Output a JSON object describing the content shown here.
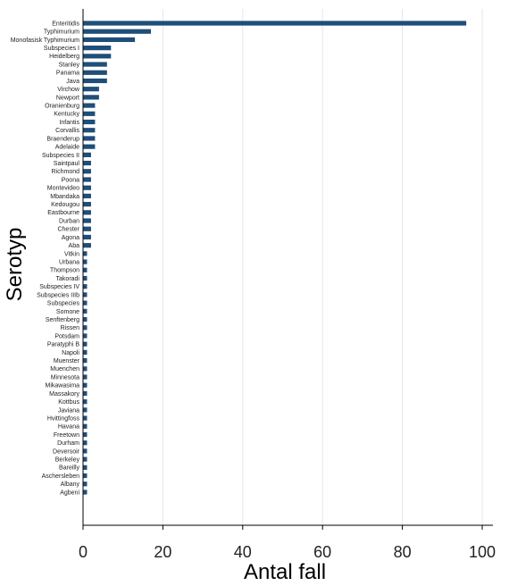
{
  "chart_data": {
    "type": "bar",
    "orientation": "horizontal",
    "categories": [
      "Enteritidis",
      "Typhimurium",
      "Monofasisk Typhimurium",
      "Subspecies I",
      "Heidelberg",
      "Stanley",
      "Panama",
      "Java",
      "Virchow",
      "Newport",
      "Oranienburg",
      "Kentucky",
      "Infantis",
      "Corvallis",
      "Braenderup",
      "Adelaide",
      "Subspecies II",
      "Saintpaul",
      "Richmond",
      "Poona",
      "Montevideo",
      "Mbandaka",
      "Kedougou",
      "Eastbourne",
      "Durban",
      "Chester",
      "Agona",
      "Aba",
      "Vitkin",
      "Urbana",
      "Thompson",
      "Takoradi",
      "Subspecies IV",
      "Subspecies IIIb",
      "Subspecies",
      "Somone",
      "Senftenberg",
      "Rissen",
      "Potsdam",
      "Paratyphi B",
      "Napoli",
      "Muenster",
      "Muenchen",
      "Minnesota",
      "Mikawasima",
      "Massakory",
      "Kottbus",
      "Javiana",
      "Hvittingfoss",
      "Havana",
      "Freetown",
      "Durham",
      "Deversoir",
      "Berkeley",
      "Bareilly",
      "Aschersleben",
      "Albany",
      "Agbeni"
    ],
    "values": [
      96,
      17,
      13,
      7,
      7,
      6,
      6,
      6,
      4,
      4,
      3,
      3,
      3,
      3,
      3,
      3,
      2,
      2,
      2,
      2,
      2,
      2,
      2,
      2,
      2,
      2,
      2,
      2,
      1,
      1,
      1,
      1,
      1,
      1,
      1,
      1,
      1,
      1,
      1,
      1,
      1,
      1,
      1,
      1,
      1,
      1,
      1,
      1,
      1,
      1,
      1,
      1,
      1,
      1,
      1,
      1,
      1,
      1
    ],
    "xlabel": "Antal fall",
    "ylabel": "Serotyp",
    "xlim": [
      0,
      100
    ],
    "xticks": [
      "0",
      "20",
      "40",
      "60",
      "80",
      "100"
    ],
    "grid": true,
    "colors": {
      "bar": "#1f4e79",
      "grid": "#e6e6e6",
      "axis": "#000000"
    }
  }
}
